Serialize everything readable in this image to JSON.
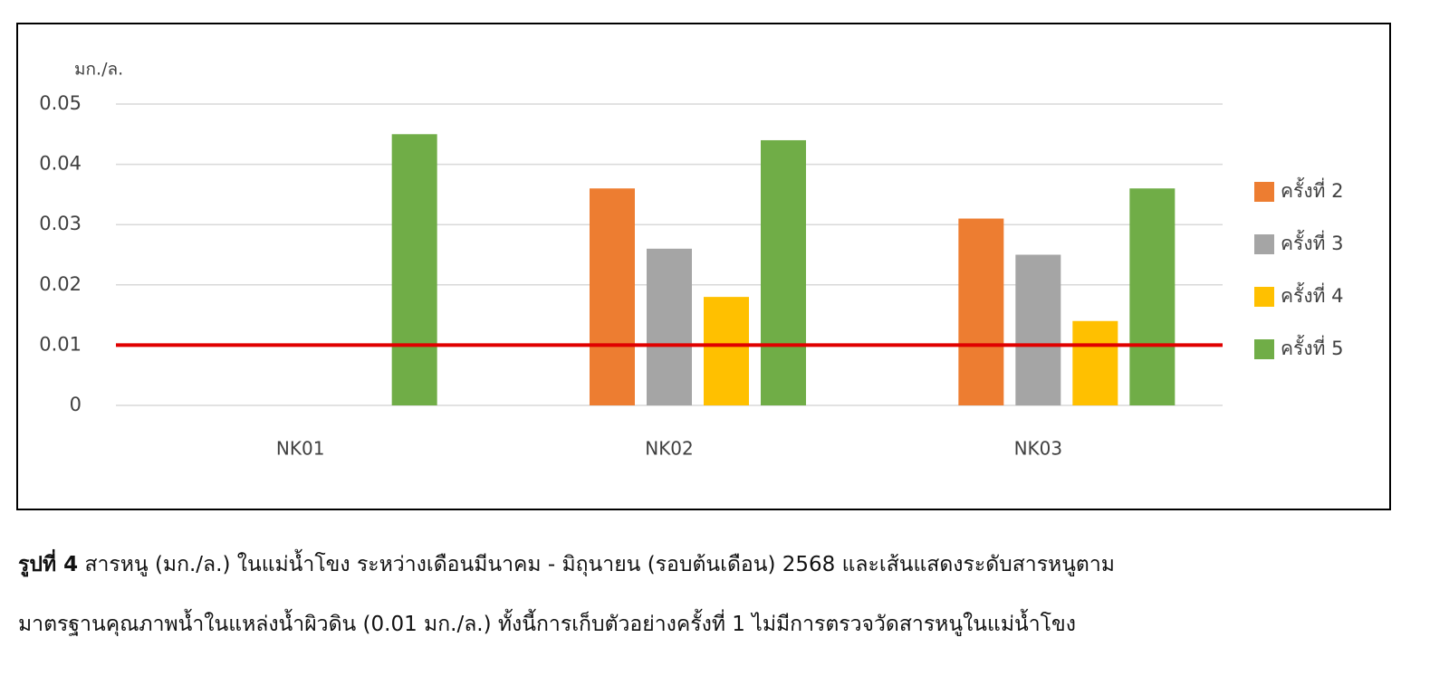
{
  "chart_data": {
    "type": "bar",
    "y_label": "มก./ล.",
    "categories": [
      "NK01",
      "NK02",
      "NK03"
    ],
    "series": [
      {
        "name": "ครั้งที่ 2",
        "color": "#ed7d31",
        "values": [
          null,
          0.036,
          0.031
        ]
      },
      {
        "name": "ครั้งที่ 3",
        "color": "#a5a5a5",
        "values": [
          null,
          0.026,
          0.025
        ]
      },
      {
        "name": "ครั้งที่ 4",
        "color": "#ffc000",
        "values": [
          null,
          0.018,
          0.014
        ]
      },
      {
        "name": "ครั้งที่ 5",
        "color": "#70ad47",
        "values": [
          0.045,
          0.044,
          0.036
        ]
      }
    ],
    "reference_line": {
      "value": 0.01,
      "color": "#e00000"
    },
    "ylim": [
      0,
      0.05
    ],
    "yticks": [
      0,
      0.01,
      0.02,
      0.03,
      0.04,
      0.05
    ],
    "grid": true,
    "legend": "right"
  },
  "caption": {
    "label": "รูปที่ 4",
    "lines": [
      "สารหนู (มก./ล.) ในแม่น้ำโขง ระหว่างเดือนมีนาคม - มิถุนายน (รอบต้นเดือน) 2568 และเส้นแสดงระดับสารหนูตาม",
      "มาตรฐานคุณภาพน้ำในแหล่งน้ำผิวดิน (0.01 มก./ล.) ทั้งนี้การเก็บตัวอย่างครั้งที่ 1 ไม่มีการตรวจวัดสารหนูในแม่น้ำโขง"
    ]
  }
}
